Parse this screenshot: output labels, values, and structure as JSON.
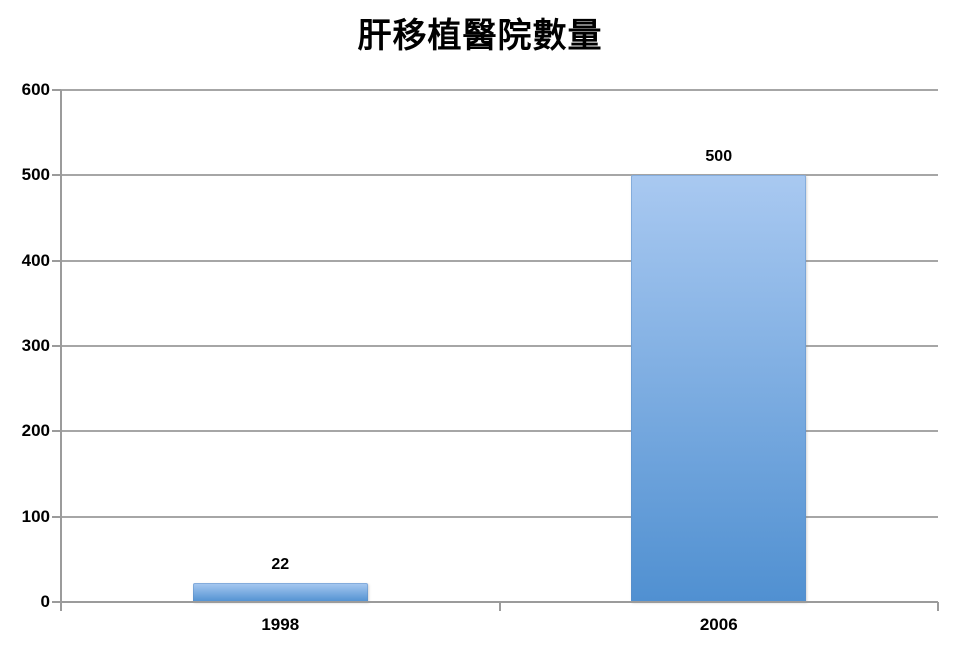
{
  "chart_data": {
    "type": "bar",
    "title": "肝移植醫院數量",
    "categories": [
      "1998",
      "2006"
    ],
    "values": [
      22,
      500
    ],
    "data_labels": [
      "22",
      "500"
    ],
    "ylim": [
      0,
      600
    ],
    "ytick_step": 100,
    "ytick_labels": [
      "0",
      "100",
      "200",
      "300",
      "400",
      "500",
      "600"
    ],
    "grid": true,
    "legend_position": "none",
    "colors": {
      "bar_gradient_top": "#a9c9f1",
      "bar_gradient_bottom": "#5090d1",
      "bar_edge": "rgba(90,140,195,0.45)",
      "gridline": "#a6a6a6",
      "axis": "#9b9b9b",
      "text": "#000000",
      "background": "#ffffff"
    }
  }
}
